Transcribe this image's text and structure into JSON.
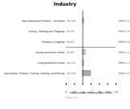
{
  "chart_data": {
    "type": "bar",
    "orientation": "horizontal",
    "title": "Industry",
    "x_label": "Proportionate Mortality Ratio (PMR)",
    "categories": [
      "Agriculture, Forestry, Fishing, Hunting, and Mining",
      "Crop production foods",
      "Animal production foods",
      "Forestry & Logging",
      "Fishing, Hunting and Trapping",
      "Agriculture and Forestry - Activities"
    ],
    "values": [
      1.5,
      1.1,
      1.2,
      1.0,
      1.0,
      1.1
    ],
    "value_labels": [
      "PMR=1.5",
      "PMR=1.1",
      "PMR=1.2",
      "PMR=1.0",
      "PMR=1.0",
      "PMR=1.1"
    ],
    "data_labels": true,
    "n_labels": [
      "N=279",
      "N=131",
      "N=97",
      "N=87",
      "N=76",
      "N=123"
    ],
    "colors": [
      "#aaaaaa",
      "#cccccc",
      "#cccccc",
      "#eeeeee",
      "#dddddd",
      "#cccccc"
    ],
    "ref_line": 1.0,
    "xlim": [
      0,
      3.0
    ],
    "xticks": [
      0,
      0.5,
      {
        "value": 1.0,
        "label": "1.0"
      },
      1.5,
      {
        "value": 2.0,
        "label": "2.0"
      },
      2.5,
      {
        "value": 3.0,
        "label": "3.0"
      }
    ],
    "note": "Note: k=y",
    "grid": false
  }
}
